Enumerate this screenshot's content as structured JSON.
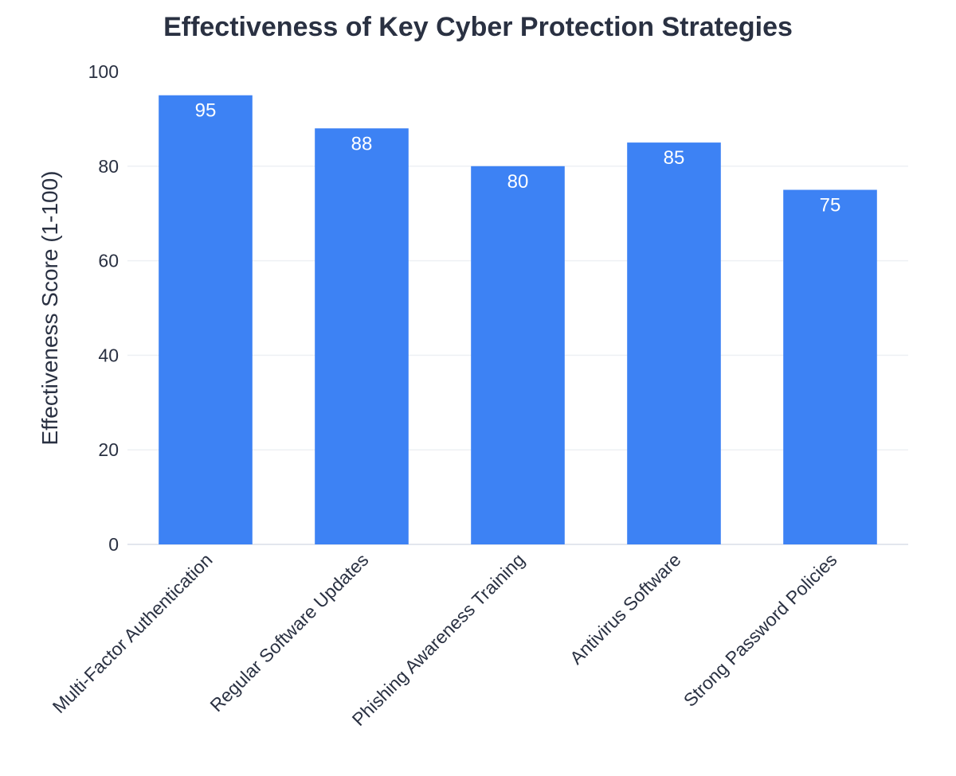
{
  "chart_data": {
    "type": "bar",
    "title": "Effectiveness of Key Cyber Protection Strategies",
    "xlabel": "",
    "ylabel": "Effectiveness Score (1-100)",
    "categories": [
      "Multi-Factor Authentication",
      "Regular Software Updates",
      "Phishing Awareness Training",
      "Antivirus Software",
      "Strong Password Policies"
    ],
    "values": [
      95,
      88,
      80,
      85,
      75
    ],
    "ylim": [
      0,
      100
    ],
    "yticks": [
      0,
      20,
      40,
      60,
      80,
      100
    ],
    "grid": true,
    "legend": "none",
    "bar_color": "#3d82f4",
    "label_color": "#ffffff"
  }
}
